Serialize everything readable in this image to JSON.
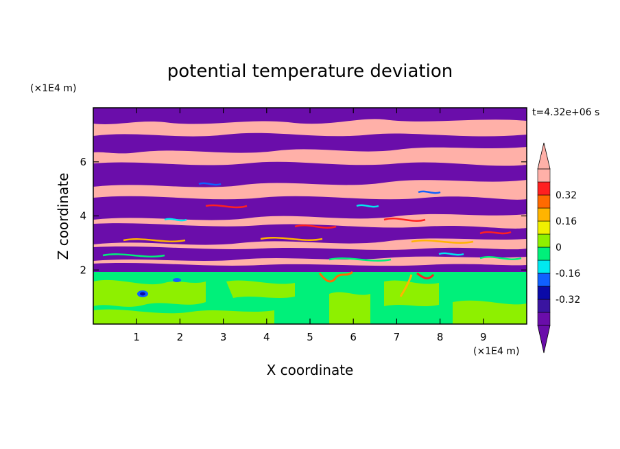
{
  "chart_data": {
    "type": "heatmap",
    "title": "potential temperature deviation",
    "xlabel": "X coordinate",
    "ylabel": "Z coordinate",
    "x_unit": "(×1E4 m)",
    "z_unit": "(×1E4 m)",
    "time_label": "t=4.32e+06 s",
    "xlim": [
      0,
      10
    ],
    "zlim": [
      0,
      8
    ],
    "x_ticks": [
      1,
      2,
      3,
      4,
      5,
      6,
      7,
      8,
      9
    ],
    "z_ticks": [
      2,
      4,
      6
    ],
    "colorbar": {
      "levels": [
        -0.48,
        -0.4,
        -0.32,
        -0.24,
        -0.16,
        -0.08,
        0,
        0.08,
        0.16,
        0.24,
        0.32,
        0.4,
        0.48
      ],
      "colors": [
        "#6a0daa",
        "#3a14a0",
        "#0a0aa8",
        "#1060ff",
        "#00e8f0",
        "#00f07a",
        "#8ef000",
        "#f0f000",
        "#ffb400",
        "#ff6a00",
        "#ff2020",
        "#ffb0a8"
      ],
      "below_color": "#6a0daa",
      "above_color": "#ffb0a8",
      "tick_labels": [
        "0.32",
        "0.16",
        "0",
        "-0.16",
        "-0.32"
      ],
      "tick_values": [
        0.32,
        0.16,
        0,
        -0.16,
        -0.32
      ]
    },
    "layers": [
      {
        "z_range": [
          0,
          1.9
        ],
        "description": "boundary layer",
        "dominant_values": [
          0.02,
          0.06
        ]
      },
      {
        "z_range": [
          1.9,
          8
        ],
        "description": "alternating bands",
        "dominant_values": [
          -0.5,
          0.5
        ]
      }
    ]
  }
}
